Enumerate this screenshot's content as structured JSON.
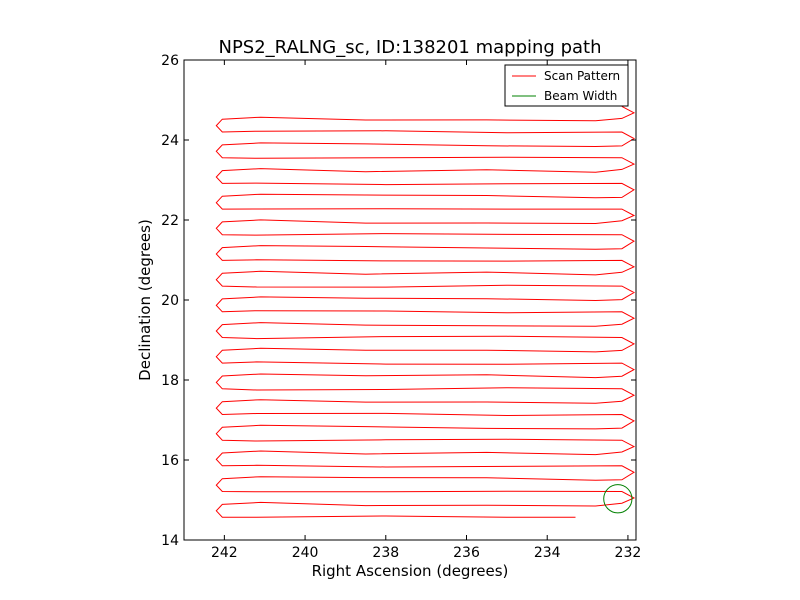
{
  "chart_data": {
    "type": "line",
    "title": "NPS2_RALNG_sc, ID:138201 mapping path",
    "xlabel": "Right Ascension (degrees)",
    "ylabel": "Declination (degrees)",
    "xlim": [
      243.0,
      231.8
    ],
    "ylim": [
      14,
      26
    ],
    "xticks": [
      242,
      240,
      238,
      236,
      234,
      232
    ],
    "yticks": [
      14,
      16,
      18,
      20,
      22,
      24,
      26
    ],
    "legend_position": "top-right",
    "grid": false,
    "colors": {
      "scan": "#ff0000",
      "beam": "#008000",
      "axes": "#000000"
    },
    "scan": {
      "west_ra": 242.05,
      "east_ra": 232.15,
      "east_wedge_ra": 231.85,
      "west_hook_ra": 242.2,
      "dec_start": 14.57,
      "dec_end": 24.52,
      "line_count": 32,
      "end_ra": 233.3
    },
    "series": [
      {
        "name": "Scan Pattern",
        "color": "#ff0000"
      },
      {
        "name": "Beam Width",
        "color": "#008000",
        "center": [
          232.25,
          15.03
        ],
        "radius_deg": 0.35
      }
    ]
  }
}
